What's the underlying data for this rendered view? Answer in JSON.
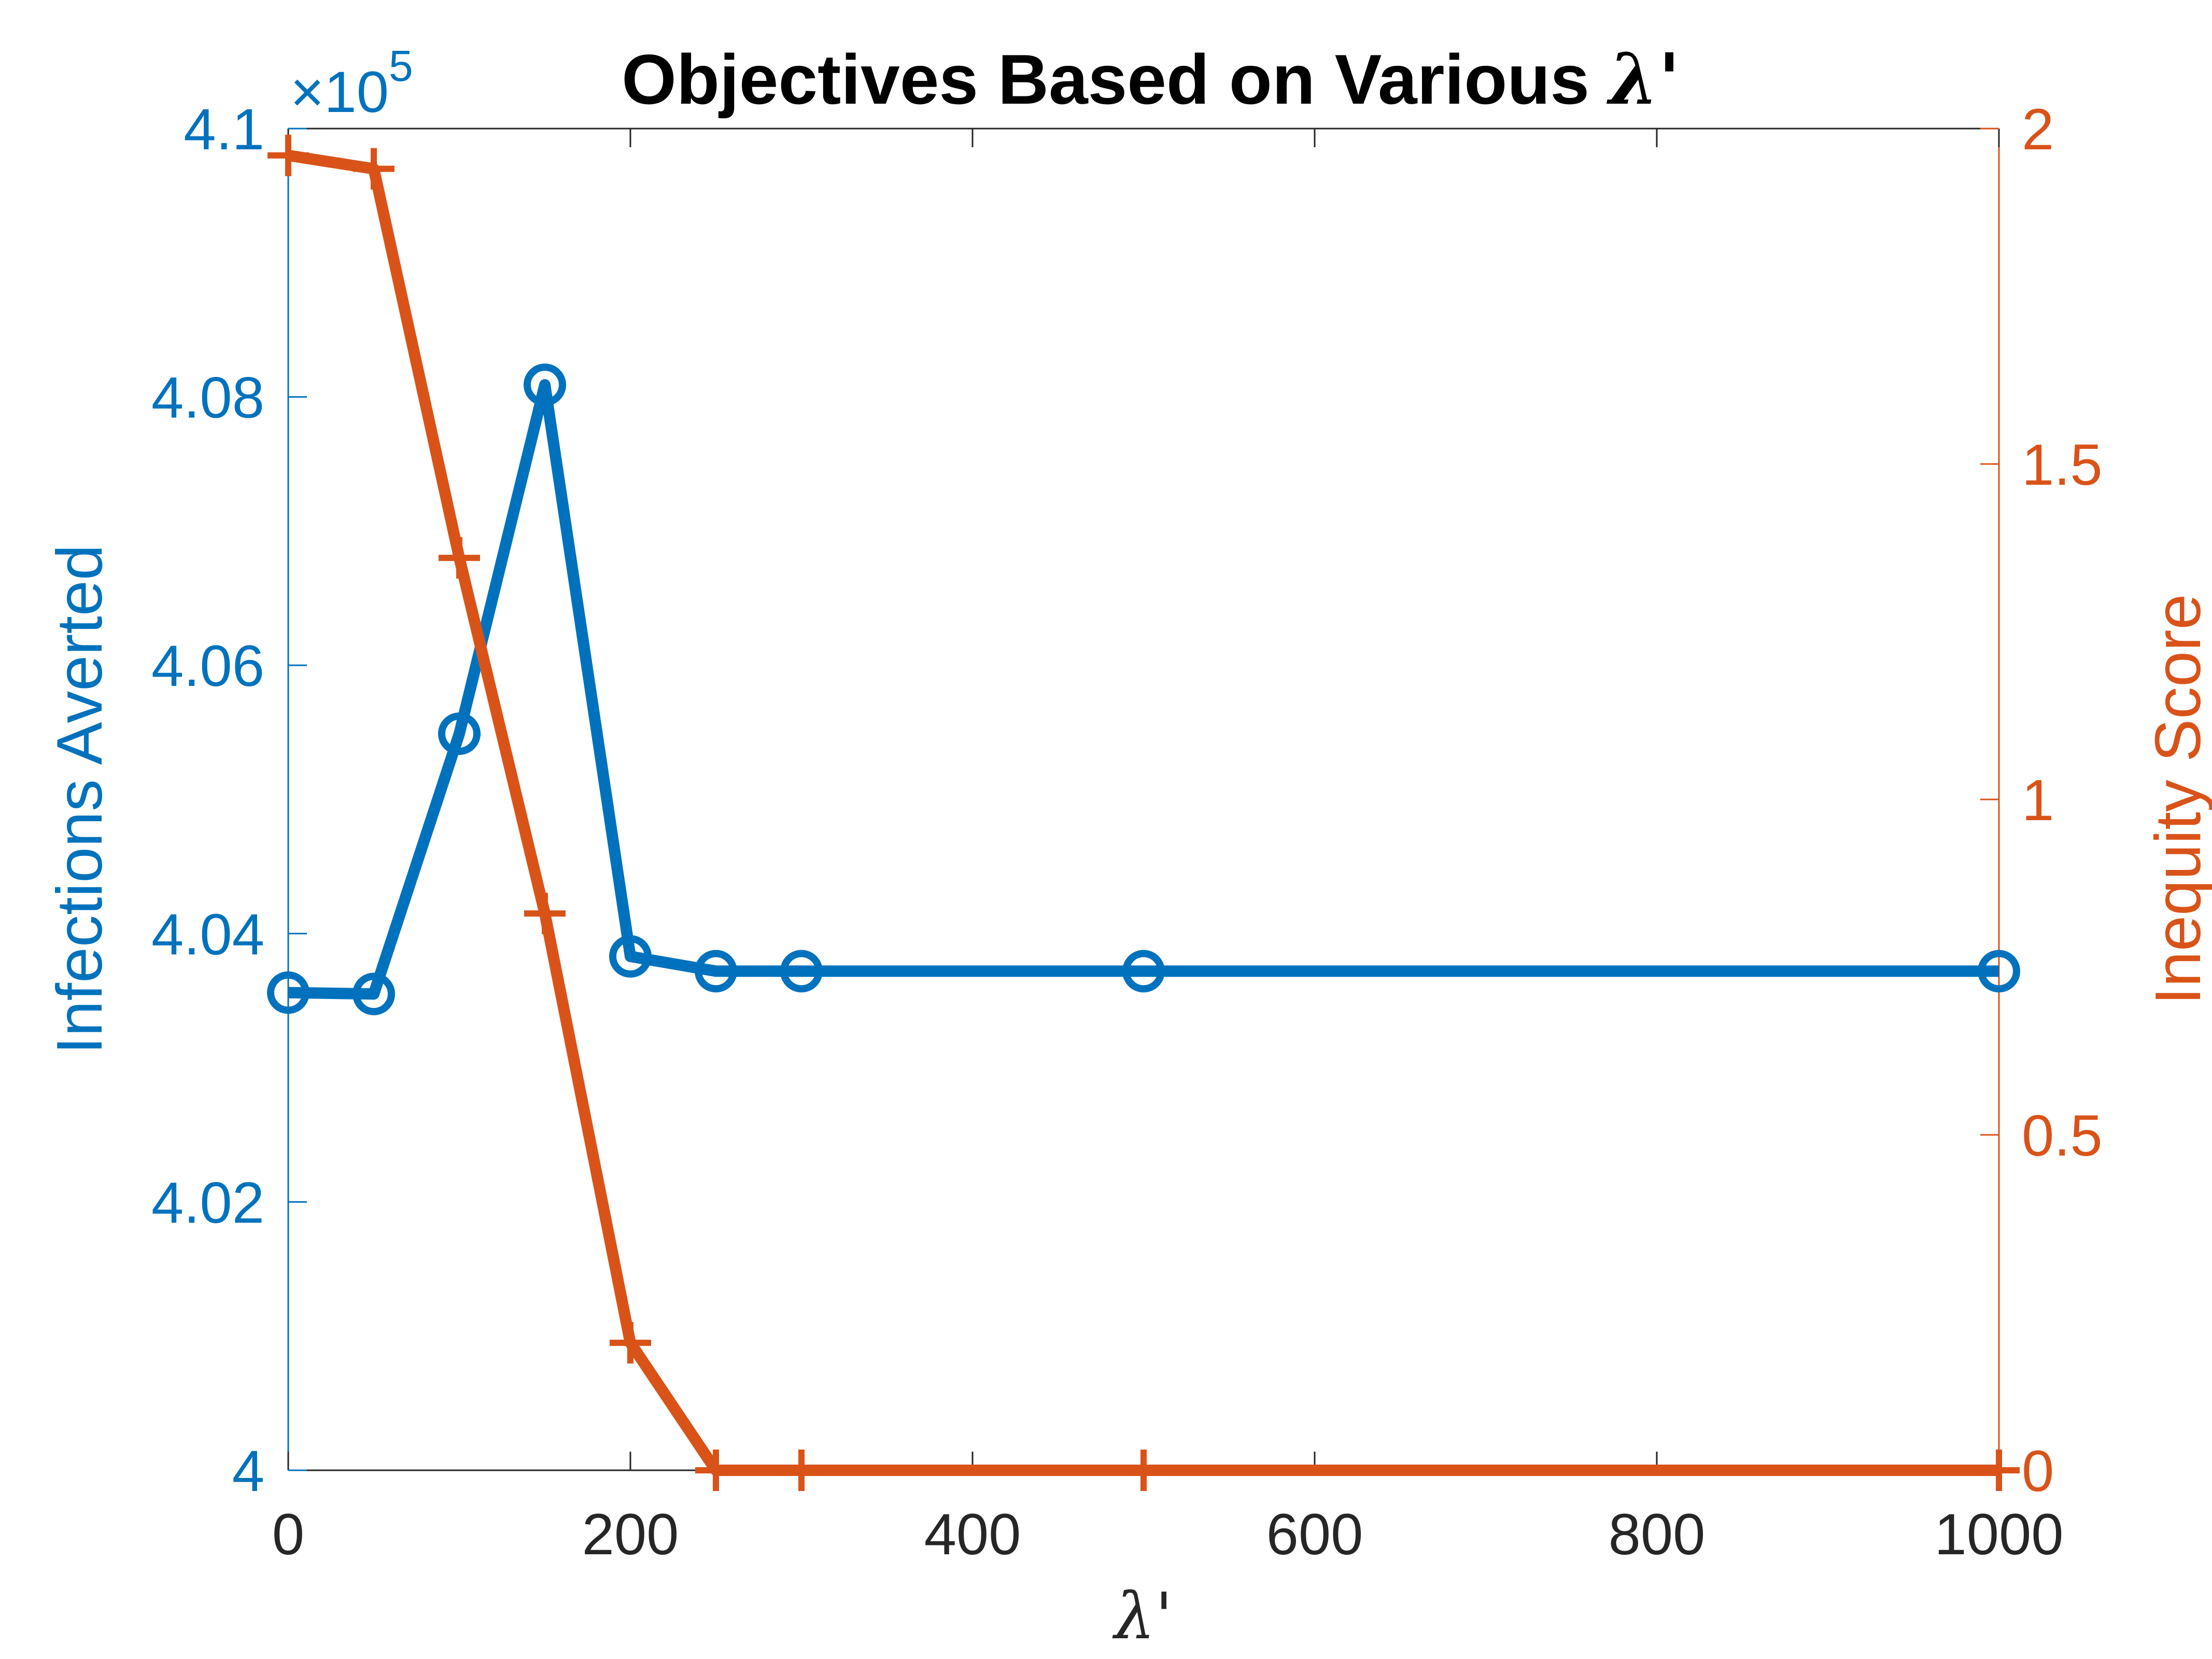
{
  "chart_data": {
    "type": "line",
    "title": "Objectives Based on Various",
    "title_symbol": "λ'",
    "xlabel": "λ'",
    "ylabel_left": "Infections Averted",
    "ylabel_right": "Inequity Score",
    "left_multiplier_label": "×10",
    "left_multiplier_exponent": "5",
    "xlim": [
      0,
      1000
    ],
    "ylim_left": [
      4.0,
      4.1
    ],
    "ylim_right": [
      0,
      2
    ],
    "x_ticks": [
      "0",
      "200",
      "400",
      "600",
      "800",
      "1000"
    ],
    "y_ticks_left": [
      "4",
      "4.02",
      "4.04",
      "4.06",
      "4.08",
      "4.1"
    ],
    "y_ticks_right": [
      "0",
      "0.5",
      "1",
      "1.5",
      "2"
    ],
    "grid": false,
    "legend": "none",
    "series": [
      {
        "axis": "left",
        "color": "#0072BD",
        "marker": "circle",
        "x": [
          0,
          50,
          100,
          150,
          200,
          250,
          300,
          500,
          1000
        ],
        "y": [
          4.0356,
          4.0355,
          4.0549,
          4.0809,
          4.0383,
          4.0372,
          4.0372,
          4.0372,
          4.0372
        ]
      },
      {
        "axis": "right",
        "color": "#D95319",
        "marker": "plus",
        "x": [
          0,
          50,
          100,
          150,
          200,
          250,
          300,
          500,
          1000
        ],
        "y": [
          1.96,
          1.94,
          1.36,
          0.83,
          0.19,
          0.0,
          0.0,
          0.0,
          0.0
        ]
      }
    ]
  }
}
